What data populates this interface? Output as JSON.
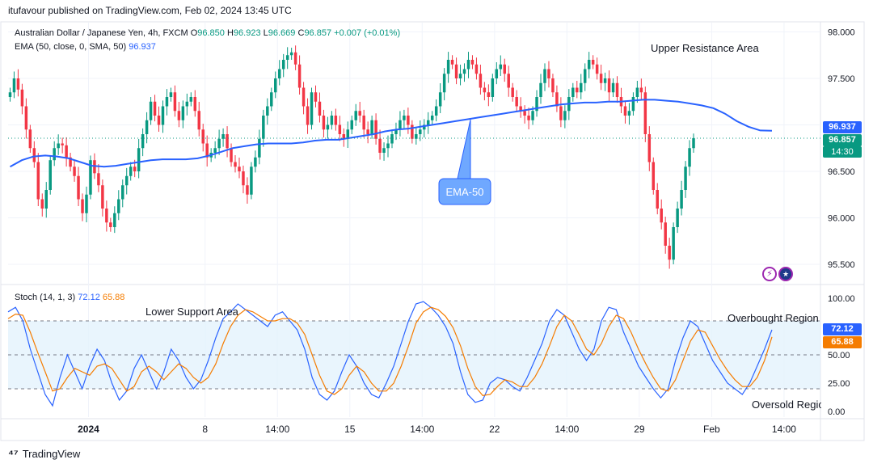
{
  "header": {
    "text": "itufavour published on TradingView.com, Feb 02, 2024 13:45 UTC"
  },
  "footer": {
    "brand": "TradingView"
  },
  "legend": {
    "symbol": "Australian Dollar / Japanese Yen, 4h, FXCM",
    "o_label": "O",
    "o": "96.850",
    "h_label": "H",
    "h": "96.923",
    "l_label": "L",
    "l": "96.669",
    "c_label": "C",
    "c": "96.857",
    "change": "+0.007 (+0.01%)",
    "ema_label": "EMA (50, close, 0, SMA, 50)",
    "ema_value": "96.937",
    "stoch_label": "Stoch (14, 1, 3)",
    "stoch_k": "72.12",
    "stoch_d": "65.88"
  },
  "annotations": {
    "upper": "Upper Resistance Area",
    "lower": "Lower Support Area",
    "overbought": "Overbought Region",
    "oversold": "Oversold Region",
    "ema_callout": "EMA-50"
  },
  "price_tags": {
    "ema": "96.937",
    "close": "96.857",
    "countdown": "14:30",
    "stoch_k": "72.12",
    "stoch_d": "65.88"
  },
  "colors": {
    "up": "#089981",
    "down": "#f23645",
    "ema": "#2962ff",
    "stoch_k": "#2962ff",
    "stoch_d": "#f57c00",
    "band": "#e3f2fd"
  },
  "chart_data": [
    {
      "type": "candlestick",
      "ylim": [
        95.3,
        98.1
      ],
      "y_ticks": [
        "98.000",
        "97.500",
        "97.000",
        "96.500",
        "96.000",
        "95.500"
      ],
      "y_tick_values": [
        98.0,
        97.5,
        97.0,
        96.5,
        96.0,
        95.5
      ],
      "x_ticks": [
        "2024",
        "8",
        "14:00",
        "15",
        "14:00",
        "22",
        "14:00",
        "29",
        "Feb",
        "14:00"
      ],
      "x_tick_bars": [
        20,
        49,
        67,
        85,
        103,
        121,
        139,
        157,
        175,
        193
      ],
      "bar_count": 190,
      "series": [
        {
          "name": "close",
          "values": [
            97.35,
            97.5,
            97.38,
            97.2,
            96.95,
            96.75,
            96.6,
            96.2,
            96.1,
            96.3,
            96.62,
            96.75,
            96.8,
            96.78,
            96.65,
            96.55,
            96.45,
            96.2,
            96.05,
            96.25,
            96.62,
            96.48,
            96.35,
            96.1,
            95.95,
            95.9,
            96.05,
            96.2,
            96.35,
            96.45,
            96.55,
            96.5,
            96.75,
            96.9,
            97.05,
            97.25,
            97.1,
            97.0,
            97.2,
            97.3,
            97.35,
            97.15,
            97.05,
            97.2,
            97.25,
            97.3,
            97.15,
            96.95,
            96.8,
            96.65,
            96.7,
            96.75,
            96.85,
            96.9,
            96.75,
            96.6,
            96.55,
            96.5,
            96.35,
            96.25,
            96.55,
            96.65,
            96.85,
            97.1,
            97.2,
            97.35,
            97.5,
            97.6,
            97.7,
            97.75,
            97.78,
            97.65,
            97.4,
            97.2,
            97.0,
            97.35,
            97.25,
            97.1,
            96.95,
            97.0,
            97.1,
            97.0,
            96.9,
            96.85,
            96.95,
            97.05,
            97.15,
            97.1,
            96.95,
            96.9,
            97.05,
            96.85,
            96.7,
            96.75,
            96.8,
            96.9,
            96.95,
            97.05,
            97.1,
            97.0,
            96.85,
            96.9,
            96.95,
            97.0,
            97.05,
            97.1,
            97.2,
            97.35,
            97.55,
            97.7,
            97.65,
            97.5,
            97.55,
            97.6,
            97.7,
            97.65,
            97.55,
            97.4,
            97.35,
            97.3,
            97.5,
            97.6,
            97.65,
            97.55,
            97.4,
            97.3,
            97.2,
            97.15,
            97.1,
            97.05,
            97.15,
            97.3,
            97.45,
            97.6,
            97.5,
            97.35,
            97.2,
            97.05,
            97.15,
            97.3,
            97.4,
            97.35,
            97.45,
            97.6,
            97.7,
            97.65,
            97.55,
            97.45,
            97.5,
            97.35,
            97.45,
            97.3,
            97.2,
            97.1,
            97.15,
            97.3,
            97.4,
            97.35,
            96.9,
            96.6,
            96.3,
            96.1,
            95.95,
            95.7,
            95.55,
            95.9,
            96.1,
            96.3,
            96.55,
            96.75,
            96.857
          ]
        },
        {
          "name": "EMA",
          "values": [
            96.55,
            96.62,
            96.66,
            96.67,
            96.66,
            96.64,
            96.6,
            96.56,
            96.55,
            96.56,
            96.58,
            96.6,
            96.62,
            96.63,
            96.63,
            96.63,
            96.64,
            96.67,
            96.71,
            96.75,
            96.77,
            96.79,
            96.8,
            96.8,
            96.8,
            96.81,
            96.83,
            96.84,
            96.84,
            96.86,
            96.88,
            96.9,
            96.93,
            96.95,
            96.96,
            96.98,
            97.0,
            97.02,
            97.04,
            97.06,
            97.08,
            97.1,
            97.12,
            97.14,
            97.16,
            97.18,
            97.2,
            97.22,
            97.23,
            97.24,
            97.24,
            97.25,
            97.25,
            97.26,
            97.27,
            97.27,
            97.26,
            97.25,
            97.23,
            97.21,
            97.18,
            97.12,
            97.04,
            96.98,
            96.94,
            96.937
          ]
        }
      ],
      "note_close": 96.857
    },
    {
      "type": "line",
      "ylim": [
        -5,
        110
      ],
      "y_ticks": [
        "100.00",
        "75.00",
        "50.00",
        "25.00",
        "0.00"
      ],
      "y_tick_values": [
        100,
        75,
        50,
        25,
        0
      ],
      "band": [
        20,
        80
      ],
      "series": [
        {
          "name": "%K",
          "values": [
            88,
            92,
            80,
            55,
            35,
            15,
            5,
            30,
            50,
            35,
            20,
            40,
            55,
            45,
            25,
            10,
            18,
            38,
            50,
            35,
            20,
            35,
            55,
            45,
            30,
            20,
            28,
            45,
            65,
            82,
            88,
            95,
            90,
            85,
            80,
            75,
            85,
            88,
            80,
            72,
            55,
            30,
            15,
            10,
            18,
            35,
            50,
            40,
            25,
            15,
            12,
            25,
            40,
            60,
            80,
            95,
            97,
            92,
            85,
            75,
            60,
            35,
            15,
            8,
            10,
            25,
            30,
            28,
            22,
            18,
            30,
            45,
            60,
            80,
            90,
            85,
            70,
            55,
            45,
            55,
            80,
            92,
            90,
            70,
            55,
            40,
            30,
            20,
            12,
            20,
            45,
            65,
            80,
            75,
            60,
            45,
            35,
            25,
            20,
            15,
            25,
            40,
            55,
            72.12
          ]
        },
        {
          "name": "%D",
          "values": [
            82,
            86,
            85,
            70,
            52,
            35,
            18,
            20,
            30,
            38,
            35,
            32,
            40,
            42,
            38,
            28,
            18,
            22,
            35,
            40,
            35,
            28,
            35,
            42,
            38,
            30,
            25,
            30,
            42,
            60,
            75,
            85,
            90,
            88,
            84,
            80,
            80,
            82,
            82,
            78,
            68,
            50,
            32,
            18,
            15,
            20,
            32,
            40,
            35,
            25,
            18,
            18,
            25,
            40,
            58,
            78,
            88,
            92,
            90,
            84,
            74,
            58,
            38,
            22,
            14,
            15,
            22,
            28,
            26,
            22,
            22,
            30,
            42,
            58,
            75,
            85,
            80,
            68,
            55,
            50,
            60,
            75,
            85,
            82,
            70,
            55,
            42,
            30,
            20,
            18,
            28,
            45,
            62,
            72,
            70,
            58,
            46,
            36,
            28,
            22,
            22,
            30,
            45,
            65.88
          ]
        }
      ]
    }
  ]
}
